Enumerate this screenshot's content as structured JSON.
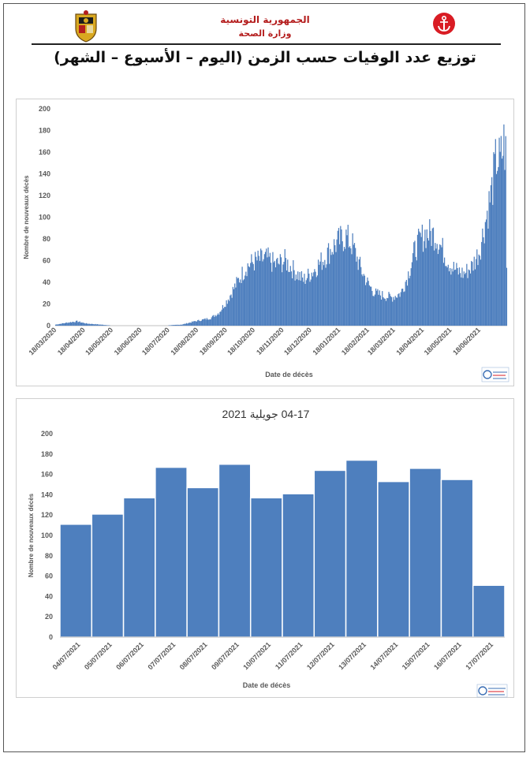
{
  "header": {
    "republic": "الجمهورية التونسية",
    "ministry": "وزارة الصحة",
    "title": "توزيع عدد الوفيات حسب الزمن (اليوم – الأسبوع – الشهر)"
  },
  "colors": {
    "bar": "#4e7fbe",
    "header_red": "#b41d1d",
    "axis_text": "#595959"
  },
  "icons": [
    "coat-of-arms-icon",
    "red-anchor-icon",
    "onmne-logo-icon"
  ],
  "chart_data": [
    {
      "type": "bar",
      "title": "",
      "xlabel": "Date de décès",
      "ylabel": "Nombre de nouveaux décès",
      "ylim": [
        0,
        200
      ],
      "yticks": [
        0,
        20,
        40,
        60,
        80,
        100,
        120,
        140,
        160,
        180,
        200
      ],
      "x_start": "18/03/2020",
      "x_end": "17/07/2021",
      "xtick_labels": [
        "18/03/2020",
        "18/04/2020",
        "18/05/2020",
        "18/06/2020",
        "18/07/2020",
        "18/08/2020",
        "18/09/2020",
        "18/10/2020",
        "18/11/2020",
        "18/12/2020",
        "18/01/2021",
        "18/02/2021",
        "18/03/2021",
        "18/04/2021",
        "18/05/2021",
        "18/06/2021"
      ],
      "series_shape": [
        [
          "18/03/2020",
          1
        ],
        [
          "01/04/2020",
          3
        ],
        [
          "10/04/2020",
          4
        ],
        [
          "20/04/2020",
          2
        ],
        [
          "05/05/2020",
          1
        ],
        [
          "20/05/2020",
          0
        ],
        [
          "15/06/2020",
          0
        ],
        [
          "10/07/2020",
          0
        ],
        [
          "01/08/2020",
          1
        ],
        [
          "15/08/2020",
          4
        ],
        [
          "01/09/2020",
          7
        ],
        [
          "10/09/2020",
          12
        ],
        [
          "20/09/2020",
          25
        ],
        [
          "01/10/2020",
          42
        ],
        [
          "10/10/2020",
          55
        ],
        [
          "20/10/2020",
          60
        ],
        [
          "01/11/2020",
          62
        ],
        [
          "10/11/2020",
          56
        ],
        [
          "20/11/2020",
          60
        ],
        [
          "01/12/2020",
          50
        ],
        [
          "10/12/2020",
          42
        ],
        [
          "20/12/2020",
          50
        ],
        [
          "01/01/2021",
          62
        ],
        [
          "10/01/2021",
          72
        ],
        [
          "20/01/2021",
          80
        ],
        [
          "25/01/2021",
          82
        ],
        [
          "01/02/2021",
          74
        ],
        [
          "10/02/2021",
          52
        ],
        [
          "18/02/2021",
          38
        ],
        [
          "25/02/2021",
          30
        ],
        [
          "05/03/2021",
          28
        ],
        [
          "15/03/2021",
          26
        ],
        [
          "25/03/2021",
          30
        ],
        [
          "01/04/2021",
          45
        ],
        [
          "10/04/2021",
          72
        ],
        [
          "20/04/2021",
          85
        ],
        [
          "01/05/2021",
          84
        ],
        [
          "10/05/2021",
          68
        ],
        [
          "18/05/2021",
          55
        ],
        [
          "25/05/2021",
          50
        ],
        [
          "01/06/2021",
          48
        ],
        [
          "10/06/2021",
          55
        ],
        [
          "18/06/2021",
          70
        ],
        [
          "25/06/2021",
          100
        ],
        [
          "01/07/2021",
          125
        ],
        [
          "06/07/2021",
          155
        ],
        [
          "10/07/2021",
          150
        ],
        [
          "14/07/2021",
          168
        ],
        [
          "16/07/2021",
          158
        ],
        [
          "17/07/2021",
          52
        ]
      ]
    },
    {
      "type": "bar",
      "title": "04-17 جويلية 2021",
      "xlabel": "Date de décès",
      "ylabel": "Nombre de nouveaux décès",
      "ylim": [
        0,
        200
      ],
      "yticks": [
        0,
        20,
        40,
        60,
        80,
        100,
        120,
        140,
        160,
        180,
        200
      ],
      "categories": [
        "04/07/2021",
        "05/07/2021",
        "06/07/2021",
        "07/07/2021",
        "08/07/2021",
        "09/07/2021",
        "10/07/2021",
        "11/07/2021",
        "12/07/2021",
        "13/07/2021",
        "14/07/2021",
        "15/07/2021",
        "16/07/2021",
        "17/07/2021"
      ],
      "values": [
        111,
        121,
        137,
        167,
        147,
        170,
        137,
        141,
        164,
        174,
        153,
        166,
        155,
        51
      ]
    }
  ]
}
